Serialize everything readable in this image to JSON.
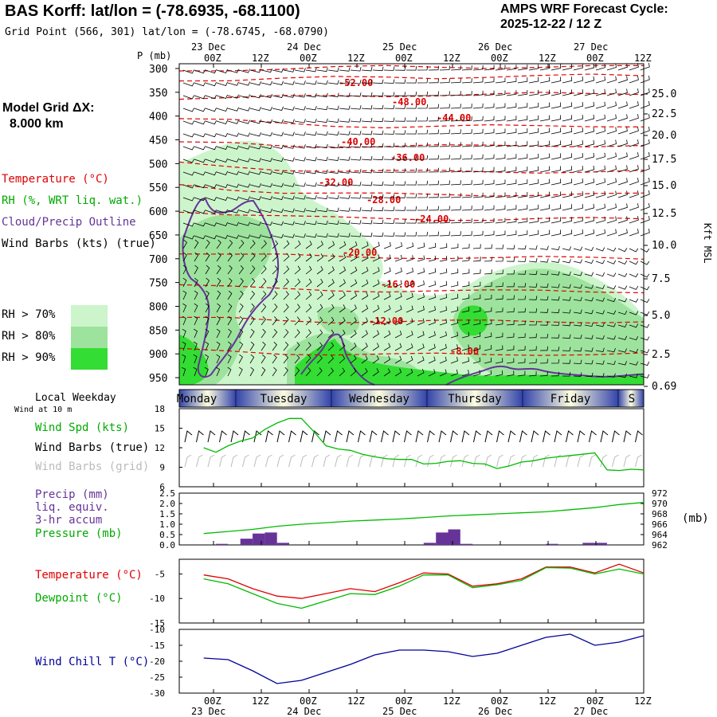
{
  "header": {
    "station": "BAS Korff:  lat/lon = (-78.6935, -68.1100)",
    "gridpoint": "Grid Point (566, 301) lat/lon = (-78.6745, -68.0790)",
    "cycle_label": "AMPS WRF Forecast Cycle:",
    "cycle_value": "2025-12-22 / 12  Z"
  },
  "model_grid": {
    "label": "Model Grid ΔX:",
    "value": "8.000 km"
  },
  "time_axis": {
    "hour_labels": [
      "00Z",
      "12Z",
      "00Z",
      "12Z",
      "00Z",
      "12Z",
      "00Z",
      "12Z",
      "00Z",
      "12Z"
    ],
    "date_labels": [
      "23 Dec",
      "24 Dec",
      "25 Dec",
      "26 Dec",
      "27 Dec"
    ]
  },
  "legend": {
    "temperature": "Temperature (°C)",
    "rh": "RH (%, WRT liq. wat.)",
    "cloud": "Cloud/Precip Outline",
    "wind_barbs": "Wind Barbs (kts) (true)",
    "rh70": "RH > 70%",
    "rh80": "RH > 80%",
    "rh90": "RH > 90%",
    "colors": {
      "temperature": "#e00000",
      "rh70": "#ccf5cc",
      "rh80": "#9de39d",
      "rh90": "#33dd33",
      "cloud": "#663399",
      "wind": "#000000"
    }
  },
  "cross_section": {
    "pressure_unit_label": "P (mb)",
    "pressure_ticks": [
      "300",
      "350",
      "400",
      "450",
      "500",
      "550",
      "600",
      "650",
      "700",
      "750",
      "800",
      "850",
      "900",
      "950"
    ],
    "height_ticks": [
      "25.0",
      "22.5",
      "20.0",
      "17.5",
      "15.0",
      "12.5",
      "10.0",
      "7.5",
      "5.0",
      "2.5",
      "0.69"
    ],
    "height_label": "Kft MSL",
    "temp_labels": [
      "-52.00",
      "-48.00",
      "-44.00",
      "-40.00",
      "-36.00",
      "-32.00",
      "-28.00",
      "-24.00",
      "-20.00",
      "-16.00",
      "-12.00",
      "-8.00"
    ]
  },
  "weekday_bar": {
    "title": "Local Weekday",
    "days": [
      "Monday",
      "Tuesday",
      "Wednesday",
      "Thursday",
      "Friday",
      "S"
    ]
  },
  "wind_panel": {
    "subtitle": "Wind at 10 m",
    "spd_label": "Wind Spd (kts)",
    "barbs_true_label": "Wind Barbs (true)",
    "barbs_grid_label": "Wind Barbs (grid)",
    "y_ticks": [
      "18",
      "15",
      "12",
      "9",
      "6"
    ]
  },
  "precip_panel": {
    "precip_label": "Precip (mm)",
    "liq_label": "liq. equiv.",
    "accum_label": "3-hr accum",
    "pressure_label": "Pressure (mb)",
    "left_ticks": [
      "2.5",
      "2.0",
      "1.5",
      "1.0",
      "0.5",
      "0.0"
    ],
    "right_ticks": [
      "972",
      "970",
      "968",
      "966",
      "964",
      "962"
    ],
    "unit": "(mb)"
  },
  "temp_panel": {
    "temp_label": "Temperature (°C)",
    "dew_label": "Dewpoint (°C)",
    "y_ticks": [
      "-5",
      "-10",
      "-15"
    ]
  },
  "chill_panel": {
    "label": "Wind Chill T (°C)",
    "y_ticks": [
      "-10",
      "-15",
      "-20",
      "-25",
      "-30"
    ]
  },
  "chart_data": [
    {
      "type": "line",
      "title": "Wind Spd (kts)",
      "x_unit": "forecast hour from 2025-12-22 12Z",
      "x": [
        0,
        3,
        6,
        9,
        12,
        15,
        18,
        21,
        24,
        27,
        30,
        33,
        36,
        39,
        42,
        45,
        48,
        51,
        54,
        57,
        60,
        63,
        66,
        69,
        72,
        75,
        78,
        81,
        84,
        87,
        90,
        93,
        96,
        99,
        102,
        105,
        108
      ],
      "ylim": [
        6,
        18
      ],
      "series": [
        {
          "name": "Wind Spd (kts)",
          "color": "#00bb00",
          "values": [
            12.0,
            11.3,
            12.3,
            13.0,
            13.5,
            14.8,
            15.8,
            16.5,
            16.5,
            14.5,
            12.3,
            11.8,
            11.6,
            11.0,
            10.6,
            10.3,
            10.2,
            10.2,
            9.5,
            9.6,
            9.9,
            10.0,
            9.6,
            9.5,
            8.8,
            9.2,
            9.8,
            10.0,
            10.4,
            10.6,
            10.8,
            11.0,
            11.2,
            8.6,
            8.5,
            8.7,
            8.6
          ]
        }
      ]
    },
    {
      "type": "bar",
      "title": "Precip (mm) liq. equiv. 3-hr accum",
      "ylim": [
        0,
        2.5
      ],
      "x": [
        6,
        12,
        15,
        18,
        21,
        57,
        60,
        63,
        66,
        87,
        96,
        99
      ],
      "values": [
        0.05,
        0.3,
        0.55,
        0.6,
        0.1,
        0.1,
        0.6,
        0.75,
        0.05,
        0.05,
        0.1,
        0.1
      ]
    },
    {
      "type": "line",
      "title": "Pressure (mb)",
      "ylim": [
        962,
        972
      ],
      "x": [
        0,
        6,
        12,
        18,
        24,
        30,
        36,
        42,
        48,
        54,
        60,
        66,
        72,
        78,
        84,
        90,
        96,
        102,
        108
      ],
      "series": [
        {
          "name": "Pressure (mb)",
          "color": "#00bb00",
          "values": [
            964.2,
            964.6,
            965.0,
            965.6,
            966.0,
            966.3,
            966.6,
            966.8,
            967.0,
            967.3,
            967.6,
            967.8,
            968.0,
            968.2,
            968.4,
            968.8,
            969.2,
            969.8,
            970.2
          ]
        }
      ]
    },
    {
      "type": "line",
      "title": "Temperature / Dewpoint (°C)",
      "ylim": [
        -15,
        -2
      ],
      "x": [
        0,
        6,
        12,
        18,
        24,
        30,
        36,
        42,
        48,
        54,
        60,
        66,
        72,
        78,
        84,
        90,
        96,
        102,
        108
      ],
      "series": [
        {
          "name": "Temperature (°C)",
          "color": "#e00000",
          "values": [
            -5.2,
            -6.0,
            -8.0,
            -9.5,
            -10.0,
            -9.0,
            -8.0,
            -8.6,
            -6.8,
            -4.8,
            -5.0,
            -7.5,
            -7.0,
            -6.0,
            -3.6,
            -3.6,
            -4.8,
            -3.0,
            -4.8
          ]
        },
        {
          "name": "Dewpoint (°C)",
          "color": "#00bb00",
          "values": [
            -6.0,
            -7.0,
            -9.0,
            -11.0,
            -12.0,
            -10.5,
            -9.0,
            -9.2,
            -7.5,
            -5.2,
            -5.2,
            -7.8,
            -7.2,
            -6.3,
            -3.7,
            -3.8,
            -5.0,
            -4.0,
            -5.0
          ]
        }
      ]
    },
    {
      "type": "line",
      "title": "Wind Chill T (°C)",
      "ylim": [
        -30,
        -10
      ],
      "x": [
        0,
        6,
        12,
        18,
        24,
        30,
        36,
        42,
        48,
        54,
        60,
        66,
        72,
        78,
        84,
        90,
        96,
        102,
        108
      ],
      "series": [
        {
          "name": "Wind Chill T (°C)",
          "color": "#000099",
          "values": [
            -19.0,
            -19.5,
            -23.0,
            -27.0,
            -26.0,
            -23.5,
            -21.0,
            -18.0,
            -16.5,
            -16.5,
            -17.0,
            -18.5,
            -17.5,
            -15.0,
            -12.5,
            -11.5,
            -15.0,
            -14.0,
            -12.0
          ]
        }
      ]
    }
  ]
}
